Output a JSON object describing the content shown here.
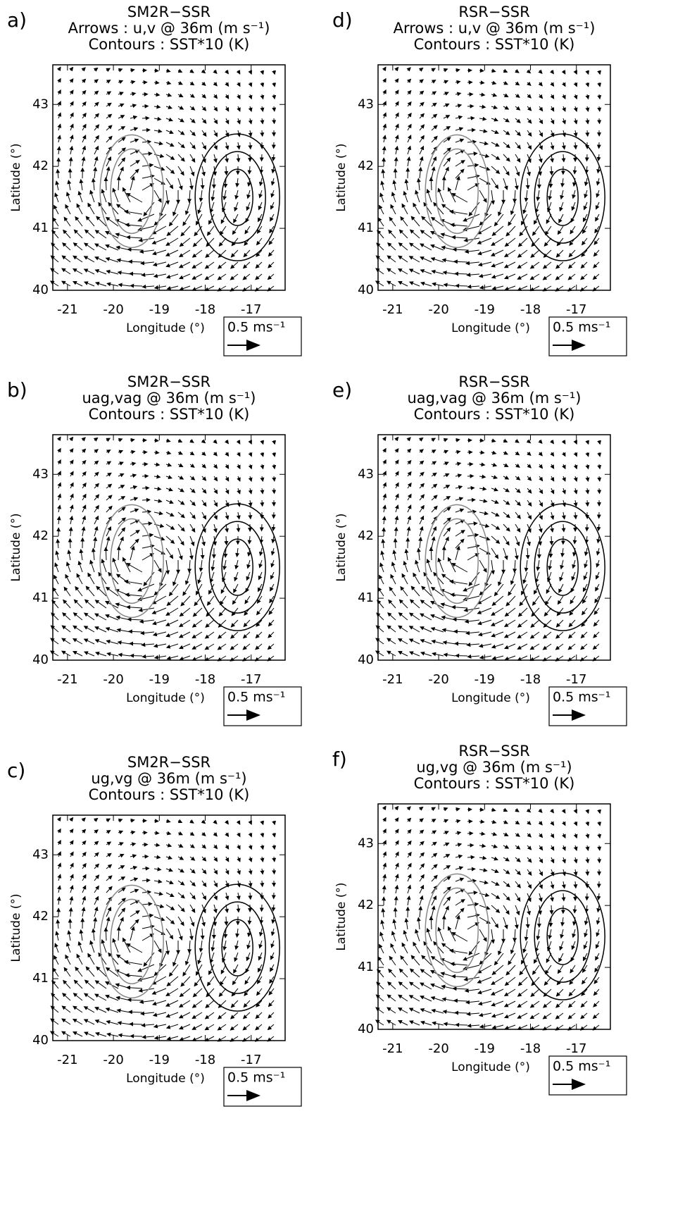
{
  "chart_data": [
    {
      "type": "quiver",
      "panel_label": "a)",
      "title": "SM2R−SSR",
      "arrows_label": "Arrows : u,v @ 36m (m s⁻¹)",
      "contours_label": "Contours : SST*10 (K)",
      "xlabel": "Longitude (°)",
      "ylabel": "Latitude (°)",
      "xlim": [
        -21.32,
        -16.26
      ],
      "ylim": [
        40,
        43.64
      ],
      "xticks": [
        -21,
        -20,
        -19,
        -18,
        -17
      ],
      "yticks": [
        40,
        41,
        42,
        43
      ],
      "key": "0.5 ms⁻¹"
    },
    {
      "type": "quiver",
      "panel_label": "b)",
      "title": "SM2R−SSR",
      "arrows_label": "uag,vag @ 36m (m s⁻¹)",
      "contours_label": "Contours : SST*10 (K)",
      "xlabel": "Longitude (°)",
      "ylabel": "Latitude (°)",
      "xlim": [
        -21.32,
        -16.26
      ],
      "ylim": [
        40,
        43.64
      ],
      "xticks": [
        -21,
        -20,
        -19,
        -18,
        -17
      ],
      "yticks": [
        40,
        41,
        42,
        43
      ],
      "key": "0.5 ms⁻¹"
    },
    {
      "type": "quiver",
      "panel_label": "c)",
      "title": "SM2R−SSR",
      "arrows_label": "ug,vg @ 36m (m s⁻¹)",
      "contours_label": "Contours : SST*10 (K)",
      "xlabel": "Longitude (°)",
      "ylabel": "Latitude (°)",
      "xlim": [
        -21.32,
        -16.26
      ],
      "ylim": [
        40,
        43.64
      ],
      "xticks": [
        -21,
        -20,
        -19,
        -18,
        -17
      ],
      "yticks": [
        40,
        41,
        42,
        43
      ],
      "key": "0.5 ms⁻¹"
    },
    {
      "type": "quiver",
      "panel_label": "d)",
      "title": "RSR−SSR",
      "arrows_label": "Arrows : u,v @ 36m (m s⁻¹)",
      "contours_label": "Contours : SST*10 (K)",
      "xlabel": "Longitude (°)",
      "ylabel": "Latitude (°)",
      "xlim": [
        -21.32,
        -16.26
      ],
      "ylim": [
        40,
        43.64
      ],
      "xticks": [
        -21,
        -20,
        -19,
        -18,
        -17
      ],
      "yticks": [
        40,
        41,
        42,
        43
      ],
      "key": "0.5 ms⁻¹"
    },
    {
      "type": "quiver",
      "panel_label": "e)",
      "title": "RSR−SSR",
      "arrows_label": "uag,vag @ 36m (m s⁻¹)",
      "contours_label": "Contours : SST*10 (K)",
      "xlabel": "Longitude (°)",
      "ylabel": "Latitude (°)",
      "xlim": [
        -21.32,
        -16.26
      ],
      "ylim": [
        40,
        43.64
      ],
      "xticks": [
        -21,
        -20,
        -19,
        -18,
        -17
      ],
      "yticks": [
        40,
        41,
        42,
        43
      ],
      "key": "0.5 ms⁻¹"
    },
    {
      "type": "quiver",
      "panel_label": "f)",
      "title": "RSR−SSR",
      "arrows_label": "ug,vg @ 36m (m s⁻¹)",
      "contours_label": "Contours : SST*10 (K)",
      "xlabel": "Longitude (°)",
      "ylabel": "Latitude (°)",
      "xlim": [
        -21.32,
        -16.26
      ],
      "ylim": [
        40,
        43.64
      ],
      "xticks": [
        -21,
        -20,
        -19,
        -18,
        -17
      ],
      "yticks": [
        40,
        41,
        42,
        43
      ],
      "key": "0.5 ms⁻¹"
    }
  ]
}
